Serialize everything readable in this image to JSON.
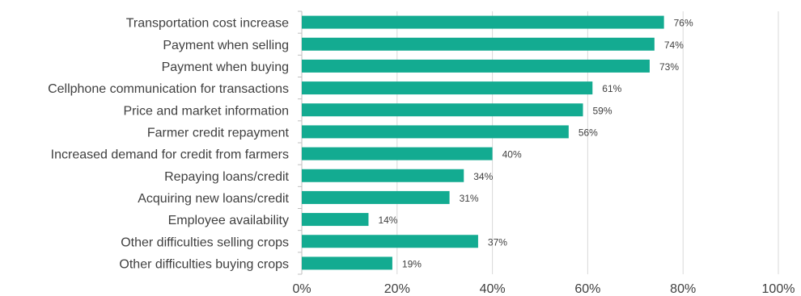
{
  "chart_data": {
    "type": "bar",
    "orientation": "horizontal",
    "categories": [
      "Transportation cost increase",
      "Payment when selling",
      "Payment when buying",
      "Cellphone communication for transactions",
      "Price and market information",
      "Farmer credit repayment",
      "Increased demand for credit from farmers",
      "Repaying loans/credit",
      "Acquiring new loans/credit",
      "Employee availability",
      "Other difficulties selling crops",
      "Other difficulties buying crops"
    ],
    "values": [
      76,
      74,
      73,
      61,
      59,
      56,
      40,
      34,
      31,
      14,
      37,
      19
    ],
    "value_labels": [
      "76%",
      "74%",
      "73%",
      "61%",
      "59%",
      "56%",
      "40%",
      "34%",
      "31%",
      "14%",
      "37%",
      "19%"
    ],
    "title": "",
    "xlabel": "",
    "ylabel": "",
    "xlim": [
      0,
      100
    ],
    "x_ticks": [
      "0%",
      "20%",
      "40%",
      "60%",
      "80%",
      "100%"
    ],
    "grid": true,
    "legend": "none",
    "bar_color": "#13ab91"
  }
}
